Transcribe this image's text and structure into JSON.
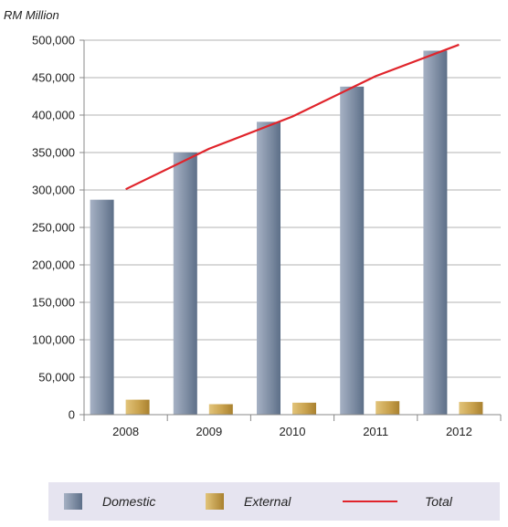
{
  "chart_data": {
    "type": "bar",
    "unit_label": "RM Million",
    "categories": [
      "2008",
      "2009",
      "2010",
      "2011",
      "2012"
    ],
    "series": [
      {
        "name": "Domestic",
        "type": "bar",
        "values": [
          287000,
          350000,
          391000,
          438000,
          486000
        ]
      },
      {
        "name": "External",
        "type": "bar",
        "values": [
          20000,
          14000,
          16000,
          18000,
          17000
        ]
      },
      {
        "name": "Total",
        "type": "line",
        "values": [
          301000,
          355000,
          398000,
          452000,
          494000
        ]
      }
    ],
    "ylim": [
      0,
      500000
    ],
    "yticks": [
      0,
      50000,
      100000,
      150000,
      200000,
      250000,
      300000,
      350000,
      400000,
      450000,
      500000
    ],
    "ytick_labels": [
      "0",
      "50,000",
      "100,000",
      "150,000",
      "200,000",
      "250,000",
      "300,000",
      "350,000",
      "400,000",
      "450,000",
      "500,000"
    ],
    "grid": true,
    "legend": {
      "placement": "bottom"
    },
    "colors": {
      "domestic": "#6f7f97",
      "external": "#c9a24e",
      "total": "#e0242b",
      "grid": "#b3b3b3",
      "legend_bg": "#e6e4f0"
    }
  }
}
